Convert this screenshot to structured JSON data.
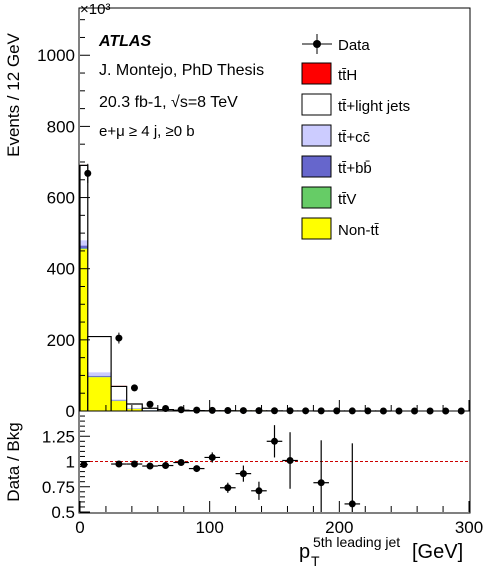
{
  "chart_data": [
    {
      "type": "bar",
      "stacked": true,
      "x_edges": [
        0,
        6,
        24,
        36,
        48,
        60,
        72,
        84,
        96,
        108,
        120,
        132,
        144,
        156,
        168,
        180,
        192,
        204,
        216,
        228,
        240,
        252,
        264,
        276,
        288,
        300
      ],
      "series": [
        {
          "name": "Non-tt̄",
          "color": "#ffff00",
          "values": [
            455,
            95,
            28,
            6,
            2,
            1,
            0.5,
            0.3,
            0.2,
            0.1,
            0.1,
            0.1,
            0,
            0,
            0,
            0,
            0,
            0,
            0,
            0,
            0,
            0,
            0,
            0,
            0
          ]
        },
        {
          "name": "tt̄V",
          "color": "#66cc66",
          "values": [
            2,
            1,
            0.5,
            0.2,
            0.1,
            0,
            0,
            0,
            0,
            0,
            0,
            0,
            0,
            0,
            0,
            0,
            0,
            0,
            0,
            0,
            0,
            0,
            0,
            0,
            0
          ]
        },
        {
          "name": "tt̄+bb̄",
          "color": "#6666cc",
          "values": [
            8,
            3,
            1.5,
            0.4,
            0.2,
            0.1,
            0,
            0,
            0,
            0,
            0,
            0,
            0,
            0,
            0,
            0,
            0,
            0,
            0,
            0,
            0,
            0,
            0,
            0,
            0
          ]
        },
        {
          "name": "tt̄+cc̄",
          "color": "#ccccff",
          "values": [
            15,
            10,
            3,
            1,
            0.4,
            0.2,
            0.1,
            0,
            0,
            0,
            0,
            0,
            0,
            0,
            0,
            0,
            0,
            0,
            0,
            0,
            0,
            0,
            0,
            0,
            0
          ]
        },
        {
          "name": "tt̄+light jets",
          "color": "#ffffff",
          "values": [
            210,
            100,
            36,
            12,
            5,
            2.5,
            1.5,
            1,
            0.6,
            0.5,
            0.4,
            0.3,
            0.3,
            0.2,
            0.2,
            0.1,
            0.1,
            0.1,
            0.1,
            0.1,
            0,
            0,
            0,
            0,
            0
          ]
        },
        {
          "name": "tt̄H",
          "color": "#ff0000",
          "values": [
            0.5,
            0.3,
            0.1,
            0,
            0,
            0,
            0,
            0,
            0,
            0,
            0,
            0,
            0,
            0,
            0,
            0,
            0,
            0,
            0,
            0,
            0,
            0,
            0,
            0,
            0
          ]
        }
      ],
      "data": {
        "name": "Data",
        "x": [
          6,
          30,
          42,
          54,
          66,
          78,
          90,
          102,
          114,
          126,
          138,
          150,
          162,
          174,
          186,
          198,
          210,
          222,
          234,
          246,
          258,
          270,
          282,
          294
        ],
        "y": [
          668,
          205,
          65,
          19,
          7,
          3.5,
          2.5,
          1.8,
          1.5,
          1.2,
          1,
          0.8,
          0.6,
          0.5,
          0.4,
          0.3,
          0.2,
          0.2,
          0.1,
          0.1,
          0.1,
          0.1,
          0.1,
          0.1
        ]
      },
      "ylabel": "Events / 12 GeV",
      "y_multiplier": "×10³",
      "ylim": [
        0,
        1130
      ],
      "yticks": [
        0,
        200,
        400,
        600,
        800,
        1000
      ],
      "xlim": [
        0,
        300
      ],
      "legend_placement": "top-right",
      "annotations": {
        "experiment": "ATLAS",
        "author": "J. Montejo, PhD Thesis",
        "energy": "20.3 fb-1, √s=8 TeV",
        "selection": "e+μ ≥ 4 j, ≥0 b"
      }
    },
    {
      "type": "scatter",
      "points": [
        {
          "x": 3,
          "xerr": 3,
          "y": 0.97,
          "yerr": 0.01
        },
        {
          "x": 30,
          "xerr": 6,
          "y": 0.975,
          "yerr": 0.015
        },
        {
          "x": 42,
          "xerr": 6,
          "y": 0.975,
          "yerr": 0.015
        },
        {
          "x": 54,
          "xerr": 6,
          "y": 0.955,
          "yerr": 0.02
        },
        {
          "x": 66,
          "xerr": 6,
          "y": 0.96,
          "yerr": 0.02
        },
        {
          "x": 78,
          "xerr": 6,
          "y": 0.99,
          "yerr": 0.025
        },
        {
          "x": 90,
          "xerr": 6,
          "y": 0.93,
          "yerr": 0.03
        },
        {
          "x": 102,
          "xerr": 6,
          "y": 1.04,
          "yerr": 0.05
        },
        {
          "x": 114,
          "xerr": 6,
          "y": 0.74,
          "yerr": 0.05
        },
        {
          "x": 126,
          "xerr": 6,
          "y": 0.88,
          "yerr": 0.08
        },
        {
          "x": 138,
          "xerr": 6,
          "y": 0.71,
          "yerr": 0.09
        },
        {
          "x": 150,
          "xerr": 6,
          "y": 1.2,
          "yerr": 0.16
        },
        {
          "x": 162,
          "xerr": 6,
          "y": 1.01,
          "yerr": 0.28
        },
        {
          "x": 186,
          "xerr": 6,
          "y": 0.79,
          "yerr": 0.42
        },
        {
          "x": 210,
          "xerr": 6,
          "y": 0.58,
          "yerr": 0.6
        }
      ],
      "reference_line": 1,
      "ylabel": "Data / Bkg",
      "xlabel": "p_T^{5th leading jet} [GeV]",
      "ylim": [
        0.5,
        1.5
      ],
      "yticks": [
        0.5,
        0.75,
        1,
        1.25
      ],
      "ytick_labels": [
        "0.5",
        "0.75",
        "1",
        "1.25"
      ],
      "xlim": [
        0,
        300
      ],
      "xticks": [
        0,
        100,
        200,
        300
      ]
    }
  ],
  "legend": {
    "data_label": "Data",
    "entries": [
      {
        "label": "tt̄H",
        "color": "#ff0000"
      },
      {
        "label": "tt̄+light jets",
        "color": "#ffffff"
      },
      {
        "label": "tt̄+cc̄",
        "color": "#ccccff"
      },
      {
        "label": "tt̄+bb̄",
        "color": "#6666cc"
      },
      {
        "label": "tt̄V",
        "color": "#66cc66"
      },
      {
        "label": "Non-tt̄",
        "color": "#ffff00"
      }
    ]
  },
  "text": {
    "y_multiplier": "×10³",
    "xlabel_main": "p",
    "xlabel_sub": "T",
    "xlabel_sup": "5th leading jet",
    "xlabel_unit": "[GeV]"
  }
}
